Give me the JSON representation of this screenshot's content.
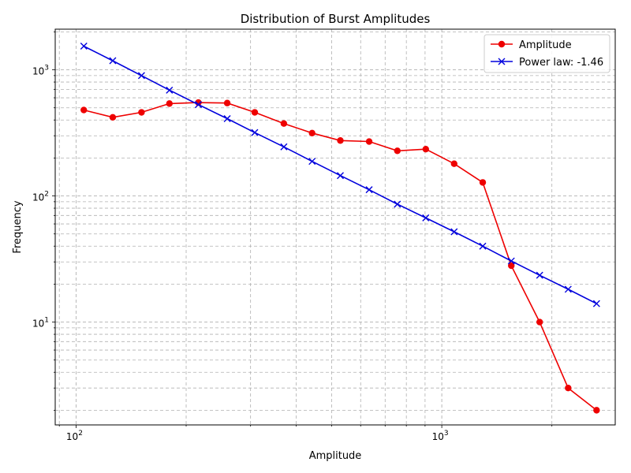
{
  "chart_data": {
    "type": "line",
    "title": "Distribution of Burst Amplitudes",
    "xlabel": "Amplitude",
    "ylabel": "Frequency",
    "xscale": "log",
    "yscale": "log",
    "xlim": [
      87.7,
      2980
    ],
    "ylim": [
      1.53,
      2100
    ],
    "grid": "both, dashed",
    "legend_position": "top-right",
    "x_major_ticks": [
      {
        "value": 100,
        "base": "10",
        "exp": "2"
      },
      {
        "value": 1000,
        "base": "10",
        "exp": "3"
      }
    ],
    "y_major_ticks": [
      {
        "value": 10,
        "base": "10",
        "exp": "1"
      },
      {
        "value": 100,
        "base": "10",
        "exp": "2"
      },
      {
        "value": 1000,
        "base": "10",
        "exp": "3"
      }
    ],
    "series": [
      {
        "name": "Amplitude",
        "color": "#ee0000",
        "marker": "circle",
        "x": [
          105,
          126,
          151,
          180,
          216,
          259,
          308,
          370,
          442,
          528,
          633,
          756,
          904,
          1081,
          1294,
          1549,
          1852,
          2216,
          2650
        ],
        "y": [
          480,
          420,
          460,
          540,
          550,
          545,
          460,
          375,
          315,
          275,
          270,
          228,
          235,
          180,
          128,
          28,
          10,
          3,
          2
        ]
      },
      {
        "name": "Power law: -1.46",
        "color": "#0000dd",
        "marker": "x",
        "x": [
          105,
          126,
          151,
          180,
          216,
          259,
          308,
          370,
          442,
          528,
          633,
          756,
          904,
          1081,
          1294,
          1549,
          1852,
          2216,
          2650
        ],
        "y": [
          1540,
          1180,
          900,
          690,
          530,
          410,
          318,
          245,
          188,
          145,
          112,
          86,
          67,
          52,
          40,
          30.5,
          23.5,
          18.2,
          14
        ]
      }
    ]
  }
}
